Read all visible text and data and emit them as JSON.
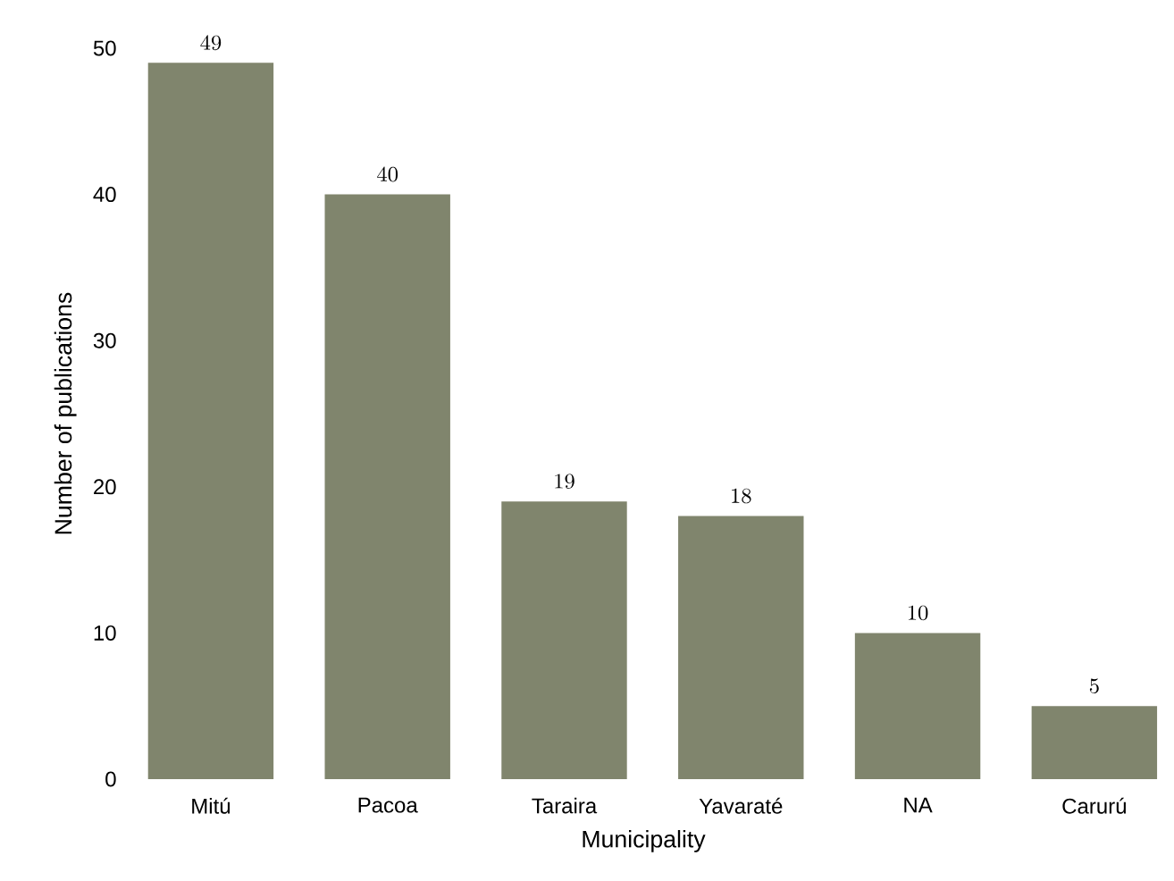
{
  "chart_data": {
    "type": "bar",
    "xlabel": "Municipality",
    "ylabel": "Number of publications",
    "categories": [
      "Mitú",
      "Pacoa",
      "Taraira",
      "Yavaraté",
      "NA",
      "Carurú"
    ],
    "values": [
      49,
      40,
      19,
      18,
      10,
      5
    ],
    "color": "#80856d",
    "ylim": [
      0,
      50
    ],
    "yticks": [
      0,
      10,
      20,
      30,
      40,
      50
    ],
    "data_labels": true,
    "grid": false
  }
}
